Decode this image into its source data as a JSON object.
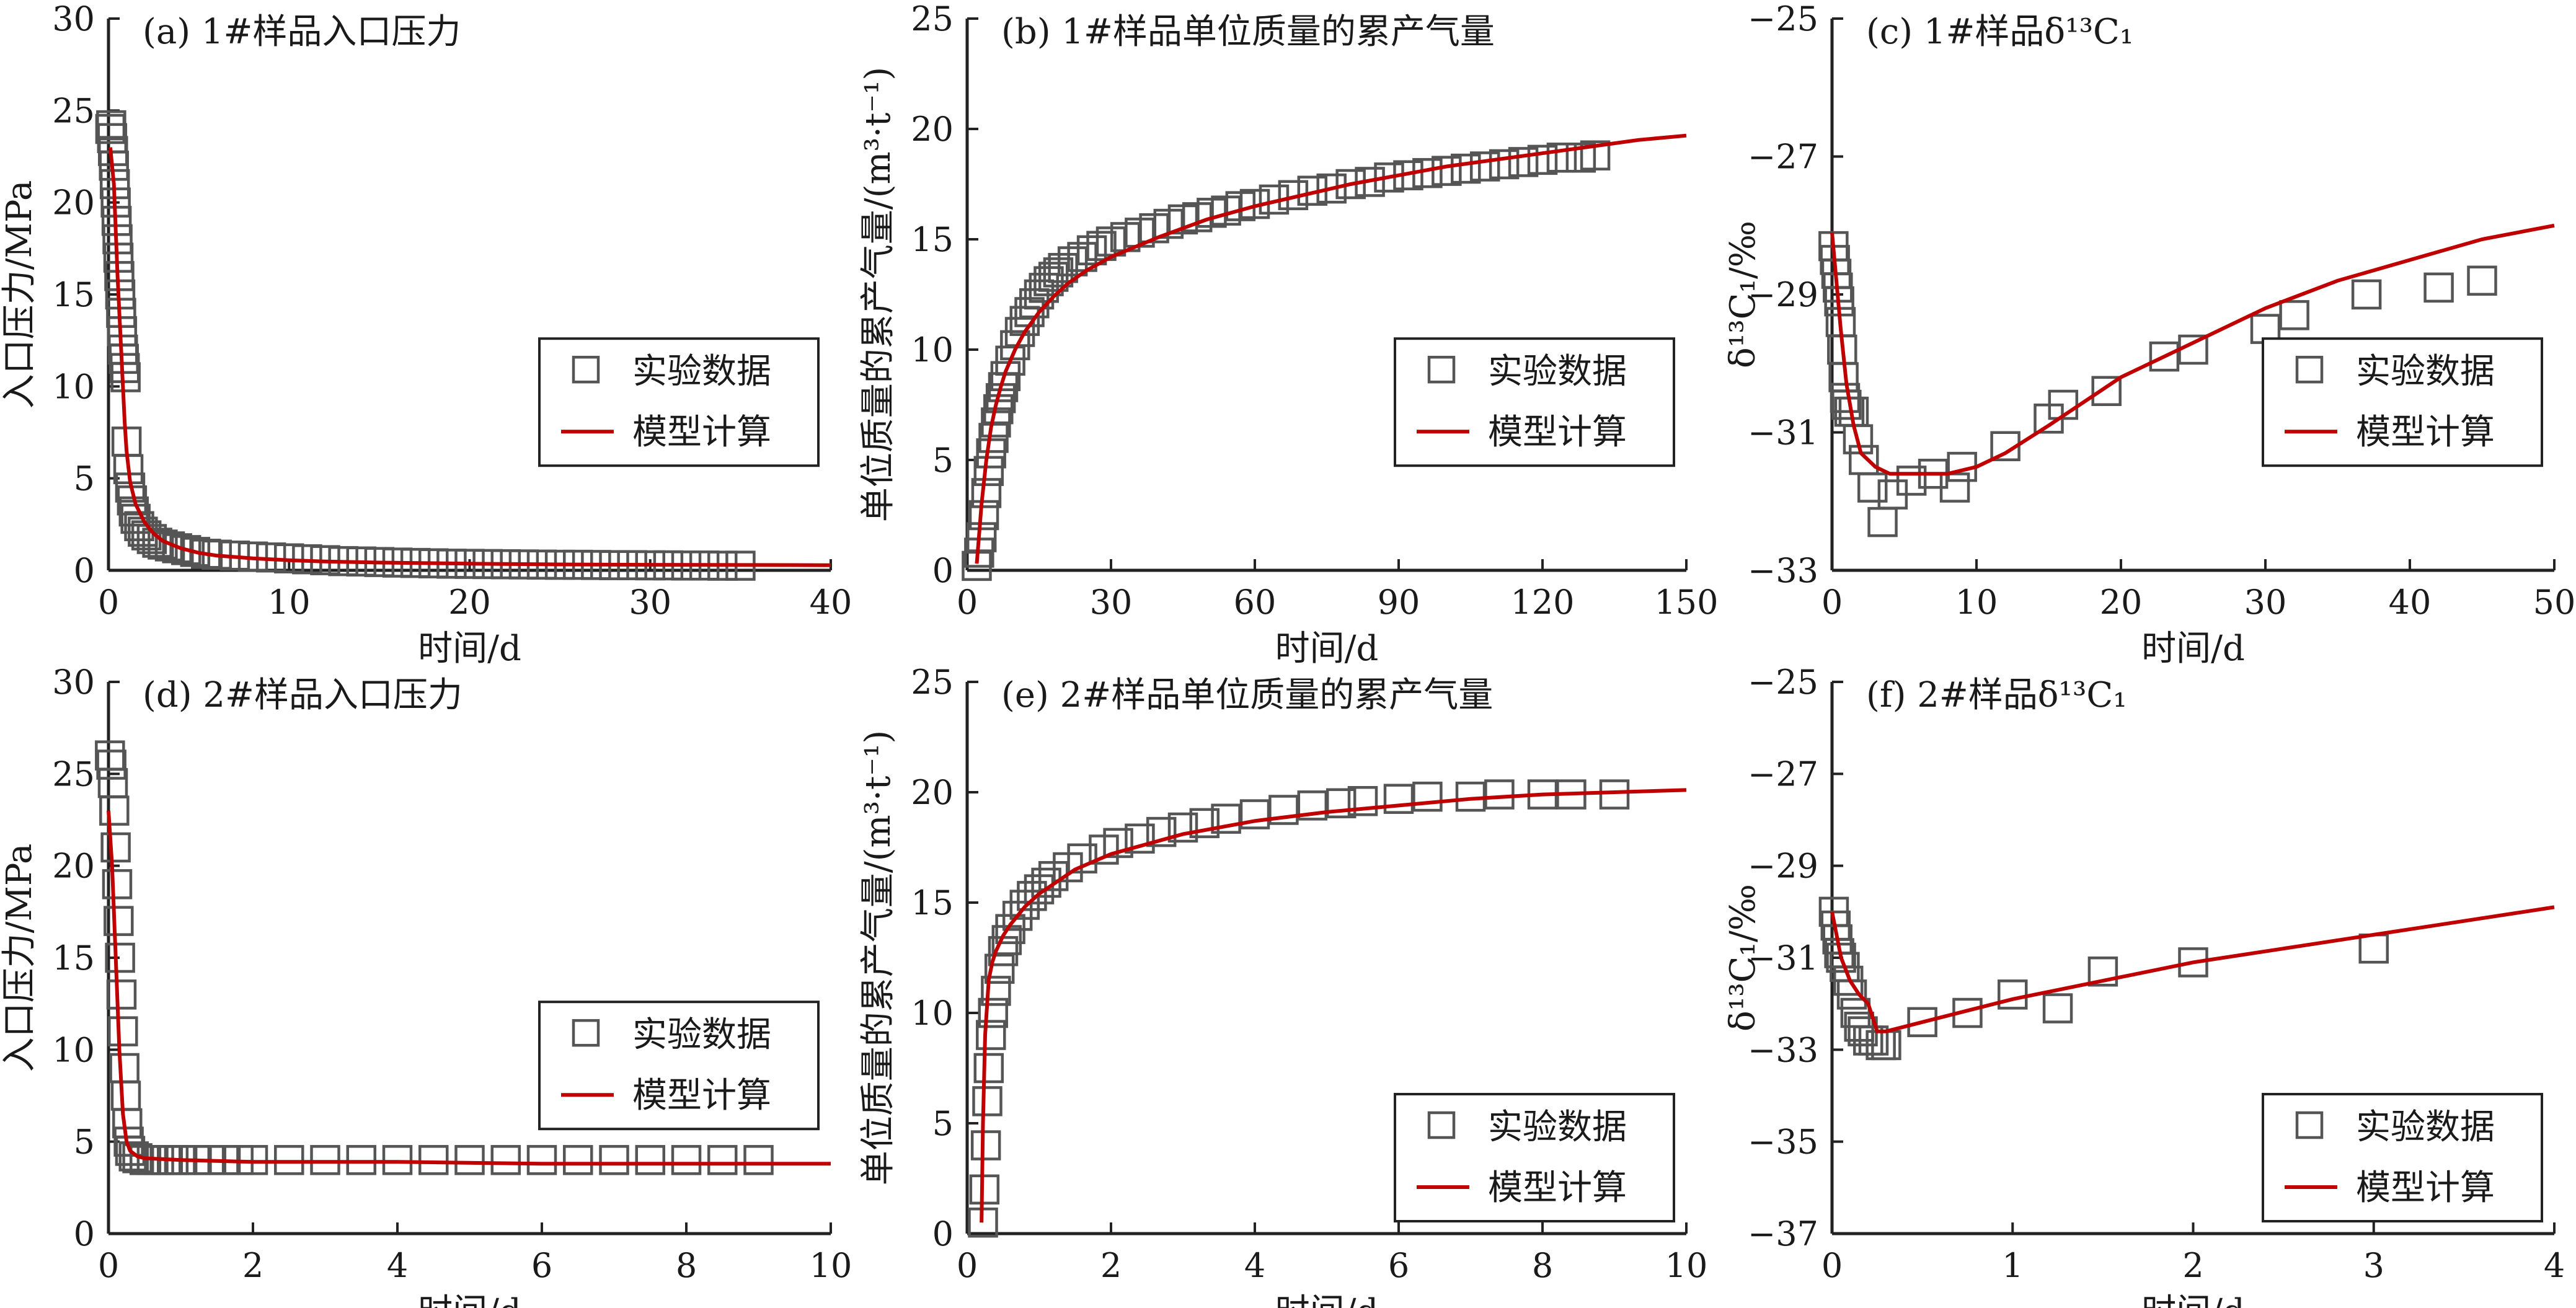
{
  "figure": {
    "legend": {
      "data_label": "实验数据",
      "model_label": "模型计算"
    },
    "colors": {
      "marker": "#555555",
      "model": "#c00000",
      "axis": "#222222"
    }
  },
  "chart_data": [
    {
      "id": "a",
      "type": "scatter",
      "title": "(a) 1#样品入口压力",
      "xlabel": "时间/d",
      "ylabel": "入口压力/MPa",
      "xlim": [
        0,
        40
      ],
      "ylim": [
        0,
        30
      ],
      "xticks": [
        0,
        10,
        20,
        30,
        40
      ],
      "yticks": [
        0,
        5,
        10,
        15,
        20,
        25,
        30
      ],
      "ytick_labels": [
        "0",
        "5",
        "10",
        "15",
        "20",
        "25",
        "30"
      ],
      "legend_position": "center-right",
      "series": [
        {
          "name": "实验数据",
          "kind": "marker",
          "x": [
            0.1,
            0.15,
            0.2,
            0.25,
            0.3,
            0.35,
            0.4,
            0.45,
            0.5,
            0.55,
            0.6,
            0.65,
            0.7,
            0.75,
            0.8,
            0.85,
            0.9,
            0.95,
            1.0,
            1.1,
            1.2,
            1.3,
            1.4,
            1.5,
            1.7,
            1.9,
            2.1,
            2.4,
            2.7,
            3.0,
            3.4,
            3.8,
            4.3,
            4.8,
            5.4,
            6.0,
            7.0,
            8.0,
            9.0,
            10.0,
            11.0,
            12.0,
            13.0,
            14.0,
            15.0,
            16.0,
            17.0,
            18.0,
            19.0,
            20.0,
            21.0,
            22.0,
            23.0,
            24.0,
            25.0,
            26.0,
            27.0,
            28.0,
            29.0,
            30.0,
            31.0,
            32.0,
            33.0,
            34.0,
            35.0
          ],
          "y": [
            24.0,
            24.2,
            23.5,
            22.8,
            22.0,
            21.0,
            20.0,
            19.0,
            18.0,
            17.0,
            16.0,
            15.0,
            14.0,
            13.0,
            12.0,
            11.5,
            11.0,
            10.5,
            7.0,
            5.5,
            4.5,
            3.8,
            3.2,
            2.8,
            2.4,
            2.1,
            1.9,
            1.7,
            1.5,
            1.4,
            1.3,
            1.2,
            1.1,
            1.0,
            0.9,
            0.85,
            0.8,
            0.75,
            0.7,
            0.65,
            0.6,
            0.55,
            0.5,
            0.48,
            0.45,
            0.42,
            0.4,
            0.38,
            0.36,
            0.35,
            0.34,
            0.33,
            0.32,
            0.31,
            0.3,
            0.3,
            0.29,
            0.28,
            0.28,
            0.27,
            0.27,
            0.26,
            0.26,
            0.25,
            0.25
          ]
        },
        {
          "name": "模型计算",
          "kind": "line",
          "x": [
            0.1,
            0.3,
            0.5,
            0.7,
            0.9,
            1.0,
            1.2,
            1.5,
            2.0,
            2.5,
            3.0,
            4.0,
            5.0,
            6.0,
            8.0,
            10.0,
            12.0,
            15.0,
            20.0,
            25.0,
            30.0,
            35.0,
            40.0
          ],
          "y": [
            23.0,
            21.0,
            16.0,
            12.0,
            8.0,
            6.5,
            4.8,
            3.6,
            2.6,
            2.0,
            1.6,
            1.2,
            0.95,
            0.8,
            0.65,
            0.55,
            0.48,
            0.42,
            0.36,
            0.32,
            0.3,
            0.29,
            0.28
          ]
        }
      ]
    },
    {
      "id": "b",
      "type": "scatter",
      "title": "(b) 1#样品单位质量的累产气量",
      "xlabel": "时间/d",
      "ylabel": "单位质量的累产气量/(m³·t⁻¹)",
      "xlim": [
        0,
        150
      ],
      "ylim": [
        0,
        25
      ],
      "xticks": [
        0,
        30,
        60,
        90,
        120,
        150
      ],
      "yticks": [
        0,
        5,
        10,
        15,
        20,
        25
      ],
      "ytick_labels": [
        "0",
        "5",
        "10",
        "15",
        "20",
        "25"
      ],
      "legend_position": "center-right",
      "series": [
        {
          "name": "实验数据",
          "kind": "marker",
          "x": [
            2,
            2.5,
            3,
            3.5,
            4,
            4.5,
            5,
            5.5,
            6,
            6.5,
            7,
            7.5,
            8,
            9,
            10,
            11,
            12,
            13,
            14,
            15,
            16,
            17,
            18,
            19,
            20,
            22,
            24,
            26,
            28,
            30,
            33,
            36,
            39,
            42,
            45,
            48,
            51,
            54,
            57,
            60,
            64,
            68,
            72,
            76,
            80,
            84,
            88,
            92,
            96,
            100,
            104,
            108,
            112,
            116,
            120,
            124,
            128,
            131
          ],
          "y": [
            0.2,
            0.8,
            1.5,
            2.5,
            3.5,
            4.5,
            5.3,
            6.0,
            6.7,
            7.3,
            7.8,
            8.3,
            8.8,
            9.5,
            10.2,
            10.8,
            11.3,
            11.7,
            12.1,
            12.5,
            12.8,
            13.1,
            13.3,
            13.5,
            13.7,
            14.0,
            14.2,
            14.5,
            14.7,
            14.9,
            15.1,
            15.3,
            15.5,
            15.7,
            15.9,
            16.0,
            16.2,
            16.3,
            16.5,
            16.6,
            16.8,
            17.0,
            17.2,
            17.3,
            17.5,
            17.6,
            17.8,
            17.9,
            18.0,
            18.1,
            18.2,
            18.3,
            18.4,
            18.5,
            18.6,
            18.7,
            18.7,
            18.8
          ]
        },
        {
          "name": "模型计算",
          "kind": "line",
          "x": [
            2,
            3,
            4,
            5,
            6,
            7,
            8,
            10,
            12,
            15,
            18,
            21,
            25,
            30,
            40,
            50,
            60,
            70,
            80,
            90,
            100,
            110,
            120,
            130,
            140,
            150
          ],
          "y": [
            0.3,
            3.0,
            5.0,
            6.5,
            7.5,
            8.3,
            9.0,
            10.0,
            10.8,
            11.7,
            12.4,
            13.0,
            13.6,
            14.2,
            15.1,
            15.9,
            16.5,
            17.0,
            17.5,
            17.9,
            18.3,
            18.6,
            18.9,
            19.2,
            19.5,
            19.7
          ]
        }
      ]
    },
    {
      "id": "c",
      "type": "scatter",
      "title": "(c) 1#样品δ¹³C₁",
      "xlabel": "时间/d",
      "ylabel": "δ¹³C₁/‰",
      "xlim": [
        0,
        50
      ],
      "ylim": [
        -33,
        -25
      ],
      "xticks": [
        0,
        10,
        20,
        30,
        40,
        50
      ],
      "yticks": [
        -33,
        -31,
        -29,
        -27,
        -25
      ],
      "ytick_labels": [
        "−33",
        "−31",
        "−29",
        "−27",
        "−25"
      ],
      "legend_position": "center-right",
      "series": [
        {
          "name": "实验数据",
          "kind": "marker",
          "x": [
            0.1,
            0.2,
            0.3,
            0.4,
            0.5,
            0.6,
            0.7,
            0.8,
            0.9,
            1.0,
            1.2,
            1.5,
            1.8,
            2.2,
            2.8,
            3.5,
            4.2,
            5.5,
            7.0,
            8.5,
            9.0,
            12.0,
            15.0,
            16.0,
            19.0,
            23.0,
            25.0,
            30.0,
            32.0,
            37.0,
            42.0,
            45.0
          ],
          "y": [
            -28.3,
            -28.5,
            -28.7,
            -28.9,
            -29.1,
            -29.4,
            -29.8,
            -30.2,
            -30.5,
            -30.6,
            -30.7,
            -30.7,
            -31.1,
            -31.4,
            -31.8,
            -32.3,
            -31.9,
            -31.7,
            -31.6,
            -31.8,
            -31.5,
            -31.2,
            -30.8,
            -30.6,
            -30.4,
            -29.9,
            -29.8,
            -29.5,
            -29.3,
            -29.0,
            -28.9,
            -28.8
          ]
        },
        {
          "name": "模型计算",
          "kind": "line",
          "x": [
            0,
            0.3,
            0.6,
            1.0,
            1.5,
            2.0,
            3.0,
            4.0,
            5.0,
            6.0,
            8.0,
            10.0,
            12.0,
            15.0,
            20.0,
            25.0,
            30.0,
            35.0,
            40.0,
            45.0,
            50.0
          ],
          "y": [
            -28.1,
            -28.8,
            -29.5,
            -30.3,
            -30.9,
            -31.3,
            -31.5,
            -31.6,
            -31.6,
            -31.6,
            -31.6,
            -31.5,
            -31.3,
            -30.9,
            -30.2,
            -29.7,
            -29.2,
            -28.8,
            -28.5,
            -28.2,
            -28.0
          ]
        }
      ]
    },
    {
      "id": "d",
      "type": "scatter",
      "title": "(d) 2#样品入口压力",
      "xlabel": "时间/d",
      "ylabel": "入口压力/MPa",
      "xlim": [
        0,
        10
      ],
      "ylim": [
        0,
        30
      ],
      "xticks": [
        0,
        2,
        4,
        6,
        8,
        10
      ],
      "yticks": [
        0,
        5,
        10,
        15,
        20,
        25,
        30
      ],
      "ytick_labels": [
        "0",
        "5",
        "10",
        "15",
        "20",
        "25",
        "30"
      ],
      "legend_position": "center-right",
      "series": [
        {
          "name": "实验数据",
          "kind": "marker",
          "x": [
            0.02,
            0.04,
            0.06,
            0.08,
            0.1,
            0.12,
            0.14,
            0.16,
            0.18,
            0.2,
            0.22,
            0.24,
            0.26,
            0.28,
            0.3,
            0.35,
            0.4,
            0.5,
            0.6,
            0.7,
            0.8,
            0.9,
            1.0,
            1.2,
            1.4,
            1.6,
            1.8,
            2.0,
            2.5,
            3.0,
            3.5,
            4.0,
            4.5,
            5.0,
            5.5,
            6.0,
            6.5,
            7.0,
            7.5,
            8.0,
            8.5,
            9.0
          ],
          "y": [
            26.0,
            25.5,
            24.5,
            23.0,
            21.0,
            19.0,
            17.0,
            15.0,
            13.0,
            11.0,
            9.0,
            7.5,
            6.0,
            5.0,
            4.5,
            4.2,
            4.1,
            4.0,
            4.0,
            4.0,
            4.0,
            4.0,
            4.0,
            4.0,
            4.0,
            4.0,
            4.0,
            4.0,
            4.0,
            4.0,
            4.0,
            4.0,
            4.0,
            4.0,
            4.0,
            4.0,
            4.0,
            4.0,
            4.0,
            4.0,
            4.0,
            4.0
          ]
        },
        {
          "name": "模型计算",
          "kind": "line",
          "x": [
            0,
            0.05,
            0.1,
            0.15,
            0.2,
            0.25,
            0.3,
            0.4,
            0.5,
            1.0,
            2.0,
            4.0,
            6.0,
            8.0,
            10.0
          ],
          "y": [
            23.0,
            20.0,
            15.0,
            10.0,
            6.5,
            5.0,
            4.5,
            4.2,
            4.1,
            4.0,
            3.9,
            3.9,
            3.8,
            3.8,
            3.8
          ]
        }
      ]
    },
    {
      "id": "e",
      "type": "scatter",
      "title": "(e) 2#样品单位质量的累产气量",
      "xlabel": "时间/d",
      "ylabel": "单位质量的累产气量/(m³·t⁻¹)",
      "xlim": [
        0,
        10
      ],
      "ylim": [
        0,
        25
      ],
      "xticks": [
        0,
        2,
        4,
        6,
        8,
        10
      ],
      "yticks": [
        0,
        5,
        10,
        15,
        20,
        25
      ],
      "ytick_labels": [
        "0",
        "5",
        "10",
        "15",
        "20",
        "25"
      ],
      "legend_position": "lower-right",
      "series": [
        {
          "name": "实验数据",
          "kind": "marker",
          "x": [
            0.22,
            0.24,
            0.26,
            0.28,
            0.3,
            0.33,
            0.36,
            0.4,
            0.45,
            0.5,
            0.55,
            0.6,
            0.7,
            0.8,
            0.9,
            1.0,
            1.1,
            1.2,
            1.4,
            1.6,
            1.9,
            2.1,
            2.4,
            2.7,
            3.0,
            3.3,
            3.6,
            4.0,
            4.4,
            4.8,
            5.2,
            5.5,
            6.0,
            6.4,
            7.0,
            7.4,
            8.0,
            8.4,
            9.0
          ],
          "y": [
            0.5,
            2.0,
            4.0,
            6.0,
            7.5,
            9.0,
            10.0,
            11.0,
            12.0,
            12.8,
            13.3,
            13.8,
            14.4,
            14.9,
            15.3,
            15.6,
            15.9,
            16.2,
            16.6,
            17.0,
            17.4,
            17.7,
            17.9,
            18.2,
            18.4,
            18.6,
            18.8,
            19.0,
            19.2,
            19.4,
            19.5,
            19.6,
            19.7,
            19.8,
            19.8,
            19.9,
            19.9,
            19.9,
            19.9
          ]
        },
        {
          "name": "模型计算",
          "kind": "line",
          "x": [
            0.2,
            0.22,
            0.25,
            0.3,
            0.35,
            0.4,
            0.5,
            0.6,
            0.8,
            1.0,
            1.5,
            2.0,
            3.0,
            4.0,
            5.0,
            6.0,
            7.0,
            8.0,
            9.0,
            10.0
          ],
          "y": [
            0.5,
            5.0,
            9.0,
            11.5,
            12.3,
            12.8,
            13.5,
            14.0,
            14.8,
            15.4,
            16.5,
            17.2,
            18.1,
            18.7,
            19.1,
            19.4,
            19.7,
            19.9,
            20.0,
            20.1
          ]
        }
      ]
    },
    {
      "id": "f",
      "type": "scatter",
      "title": "(f) 2#样品δ¹³C₁",
      "xlabel": "时间/d",
      "ylabel": "δ¹³C₁/‰",
      "xlim": [
        0,
        4
      ],
      "ylim": [
        -37,
        -25
      ],
      "xticks": [
        0,
        1,
        2,
        3,
        4
      ],
      "yticks": [
        -37,
        -35,
        -33,
        -31,
        -29,
        -27,
        -25
      ],
      "ytick_labels": [
        "−37",
        "−35",
        "−33",
        "−31",
        "−29",
        "−27",
        "−25"
      ],
      "legend_position": "lower-right",
      "series": [
        {
          "name": "实验数据",
          "kind": "marker",
          "x": [
            0.01,
            0.02,
            0.03,
            0.04,
            0.05,
            0.07,
            0.09,
            0.11,
            0.13,
            0.15,
            0.17,
            0.2,
            0.23,
            0.27,
            0.3,
            0.5,
            0.75,
            1.0,
            1.25,
            1.5,
            2.0,
            3.0
          ],
          "y": [
            -30.0,
            -30.3,
            -30.6,
            -30.9,
            -31.0,
            -31.2,
            -31.5,
            -31.8,
            -32.2,
            -32.5,
            -32.6,
            -32.8,
            -32.8,
            -32.9,
            -32.9,
            -32.4,
            -32.2,
            -31.8,
            -32.1,
            -31.3,
            -31.1,
            -30.8
          ]
        },
        {
          "name": "模型计算",
          "kind": "line",
          "x": [
            0,
            0.05,
            0.1,
            0.15,
            0.2,
            0.25,
            0.3,
            0.5,
            1.0,
            1.5,
            2.0,
            2.5,
            3.0,
            3.5,
            4.0
          ],
          "y": [
            -30.0,
            -31.0,
            -31.5,
            -31.8,
            -32.0,
            -32.6,
            -32.6,
            -32.4,
            -31.9,
            -31.5,
            -31.1,
            -30.8,
            -30.5,
            -30.2,
            -29.9
          ]
        }
      ]
    }
  ]
}
